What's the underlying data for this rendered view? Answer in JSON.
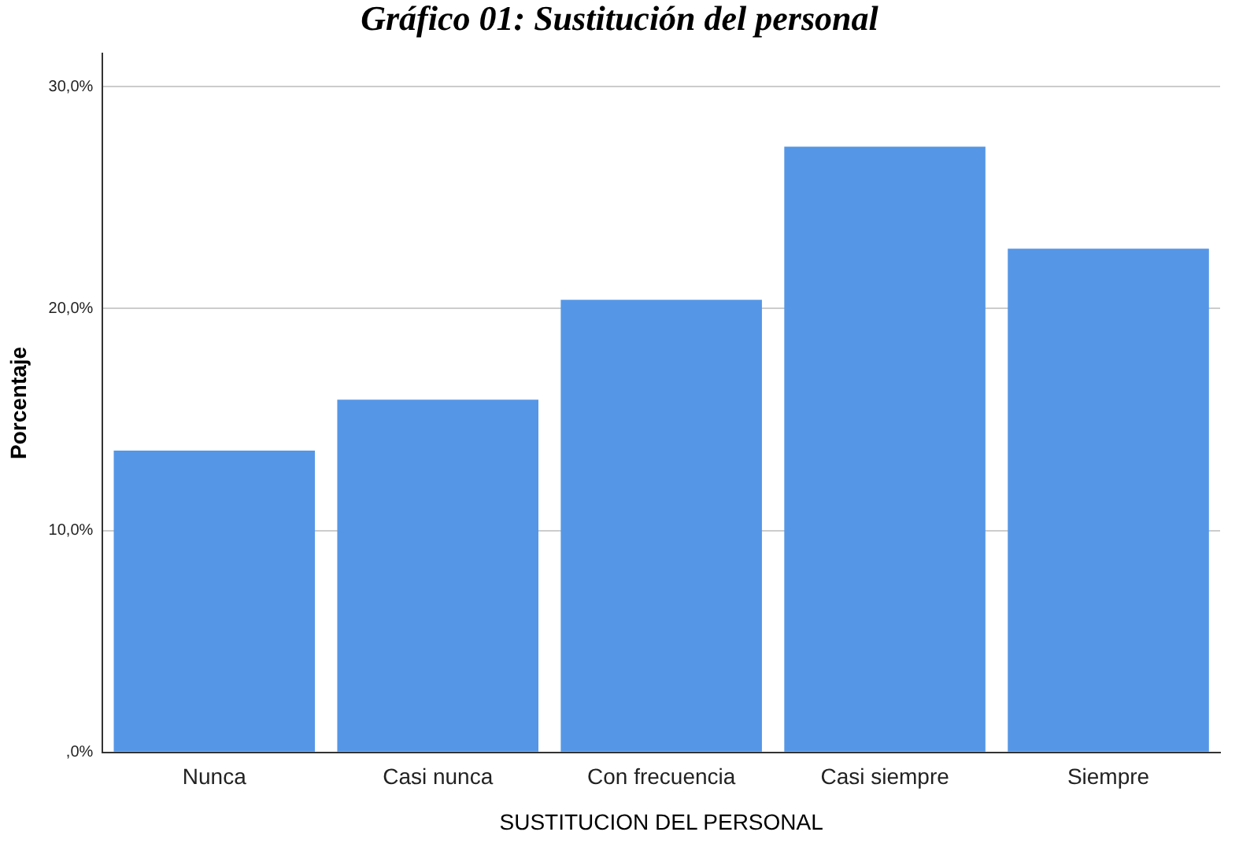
{
  "chart_data": {
    "type": "bar",
    "title": "Gráfico 01: Sustitución del personal",
    "xlabel": "SUSTITUCION DEL PERSONAL",
    "ylabel": "Porcentaje",
    "categories": [
      "Nunca",
      "Casi nunca",
      "Con frecuencia",
      "Casi siempre",
      "Siempre"
    ],
    "values": [
      13.6,
      15.9,
      20.4,
      27.3,
      22.7
    ],
    "color": "#5596e6",
    "ylim": [
      0,
      31.5
    ],
    "yticks": [
      {
        "value": 0,
        "label": ",0%"
      },
      {
        "value": 10,
        "label": "10,0%"
      },
      {
        "value": 20,
        "label": "20,0%"
      },
      {
        "value": 30,
        "label": "30,0%"
      }
    ],
    "grid": "y",
    "legend": false
  }
}
